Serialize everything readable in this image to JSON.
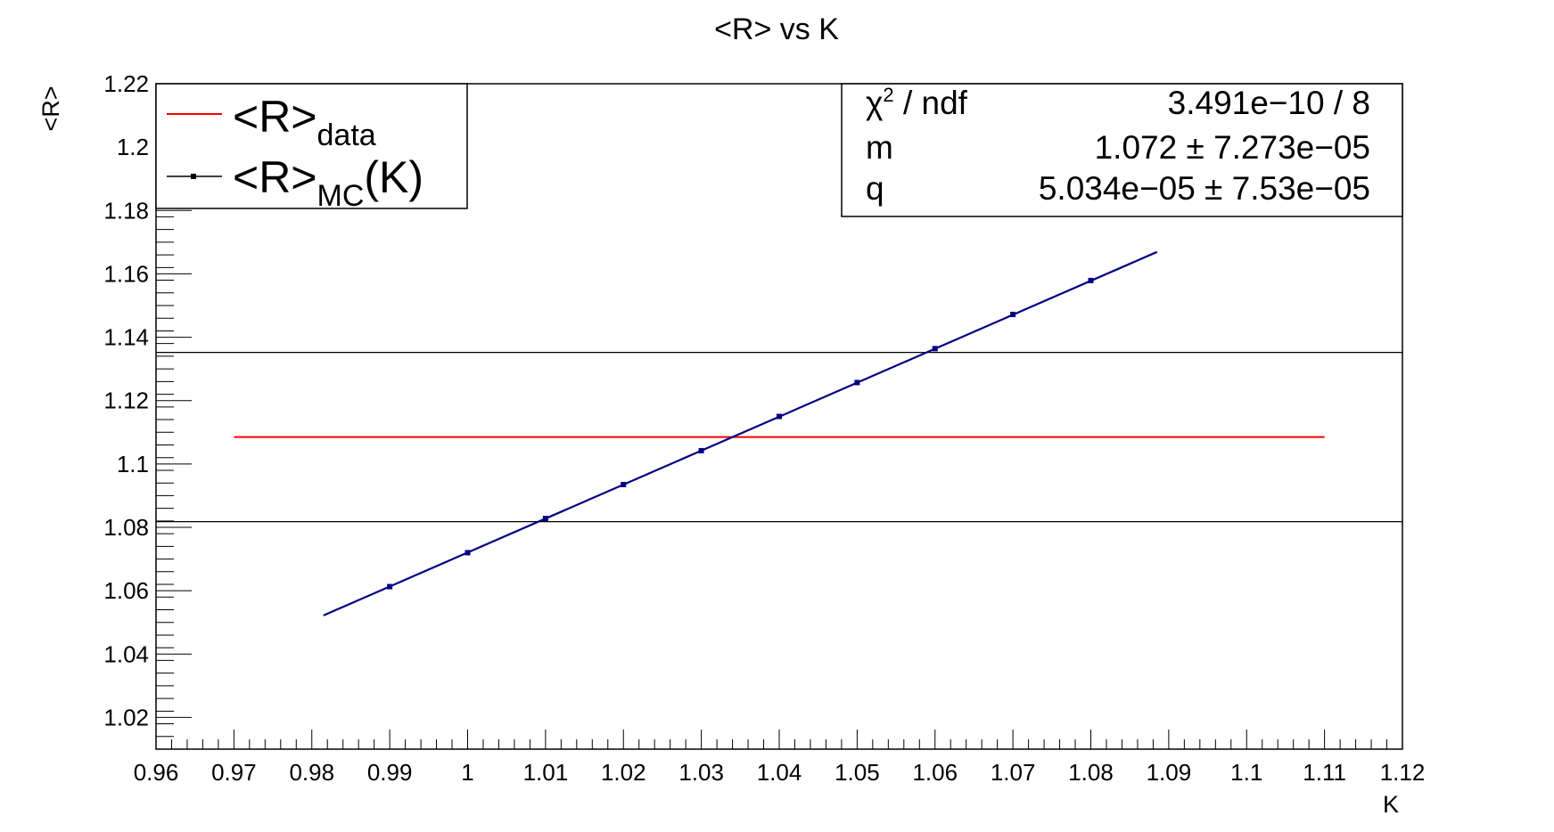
{
  "chart_data": {
    "type": "line",
    "title": "<R> vs K",
    "xlabel": "K",
    "ylabel": "<R>",
    "xlim": [
      0.96,
      1.12
    ],
    "ylim": [
      1.01,
      1.22
    ],
    "x_tick_labels": [
      "0.96",
      "0.97",
      "0.98",
      "0.99",
      "1",
      "1.01",
      "1.02",
      "1.03",
      "1.04",
      "1.05",
      "1.06",
      "1.07",
      "1.08",
      "1.09",
      "1.1",
      "1.11",
      "1.12"
    ],
    "y_tick_labels": [
      "1.02",
      "1.04",
      "1.06",
      "1.08",
      "1.1",
      "1.12",
      "1.14",
      "1.16",
      "1.18",
      "1.2",
      "1.22"
    ],
    "grid": false,
    "legend_position": "top-left",
    "series": [
      {
        "name": "<R>_MC(K)",
        "color": "#000080",
        "x": [
          0.99,
          1.0,
          1.01,
          1.02,
          1.03,
          1.04,
          1.05,
          1.06,
          1.07,
          1.08
        ],
        "y": [
          1.0613,
          1.072,
          1.0828,
          1.0935,
          1.1042,
          1.115,
          1.1257,
          1.1364,
          1.1472,
          1.1579
        ]
      },
      {
        "name": "<R>_data",
        "color": "#ff0000",
        "x": [
          0.97,
          1.11
        ],
        "y": [
          1.1085,
          1.1085
        ]
      }
    ],
    "fit_line": {
      "color": "#000080",
      "x_range": [
        0.9815,
        1.0885
      ],
      "m": 1.072,
      "q": 5.034e-05
    },
    "band_lines": {
      "color": "#000000",
      "y": [
        1.0818,
        1.1352
      ]
    },
    "legend": {
      "entries": [
        {
          "main": "<R>",
          "sub": "data",
          "suffix": "",
          "color": "#ff0000",
          "marker": false
        },
        {
          "main": "<R>",
          "sub": "MC",
          "suffix": "(K)",
          "color": "#000000",
          "marker": true
        }
      ]
    },
    "stats": {
      "rows": [
        {
          "label": "χ",
          "label_sup": "2",
          "label_rest": " / ndf",
          "value": "3.491e−10 / 8"
        },
        {
          "label": "m",
          "label_sup": "",
          "label_rest": "",
          "value": "1.072 ± 7.273e−05"
        },
        {
          "label": "q",
          "label_sup": "",
          "label_rest": "",
          "value": "5.034e−05 ± 7.53e−05"
        }
      ]
    }
  }
}
